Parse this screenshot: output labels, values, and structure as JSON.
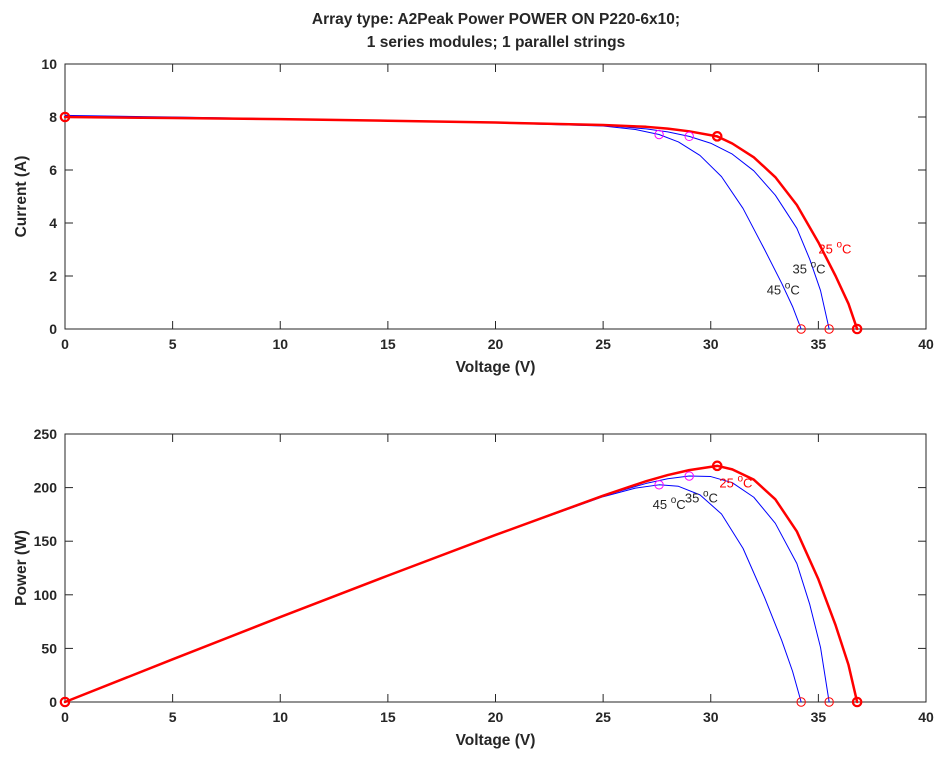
{
  "figure": {
    "title_line1": "Array type: A2Peak Power POWER ON P220-6x10;",
    "title_line2": "1 series modules; 1 parallel strings"
  },
  "colors": {
    "temp25": "#ff0000",
    "temp35": "#0000ff",
    "temp45": "#0000ff",
    "mpp_marker_cool": "#ff00ff",
    "voc_marker": "#ff0000",
    "label25": "#ff0000",
    "label_other": "#262626"
  },
  "chart_data": [
    {
      "type": "line",
      "xlabel": "Voltage (V)",
      "ylabel": "Current (A)",
      "xlim": [
        0,
        40
      ],
      "ylim": [
        0,
        10
      ],
      "xticks": [
        0,
        5,
        10,
        15,
        20,
        25,
        30,
        35,
        40
      ],
      "yticks": [
        0,
        2,
        4,
        6,
        8,
        10
      ],
      "grid": false,
      "series": [
        {
          "name": "25 °C",
          "x": [
            0,
            5,
            10,
            15,
            20,
            25,
            27,
            28,
            29,
            30.3,
            31,
            32,
            33,
            34,
            35,
            35.8,
            36.4,
            36.8
          ],
          "y": [
            8.0,
            7.96,
            7.92,
            7.86,
            7.79,
            7.7,
            7.63,
            7.56,
            7.46,
            7.27,
            7.0,
            6.48,
            5.73,
            4.68,
            3.27,
            2.0,
            0.95,
            0.0
          ]
        },
        {
          "name": "35 °C",
          "x": [
            0,
            5,
            10,
            15,
            20,
            25,
            27,
            28,
            29,
            30,
            31,
            32,
            33,
            34,
            34.6,
            35.1,
            35.5
          ],
          "y": [
            8.03,
            7.98,
            7.92,
            7.85,
            7.78,
            7.69,
            7.55,
            7.44,
            7.27,
            7.01,
            6.6,
            5.97,
            5.05,
            3.8,
            2.63,
            1.45,
            0.0
          ]
        },
        {
          "name": "45 °C",
          "x": [
            0,
            5,
            10,
            15,
            20,
            25,
            26.5,
            27.6,
            28.5,
            29.5,
            30.5,
            31.5,
            32.5,
            33.3,
            33.8,
            34.2
          ],
          "y": [
            8.06,
            8.0,
            7.93,
            7.86,
            7.78,
            7.66,
            7.53,
            7.34,
            7.06,
            6.55,
            5.75,
            4.55,
            3.0,
            1.72,
            0.85,
            0.0
          ]
        }
      ],
      "markers": [
        {
          "x": 0,
          "y": 8.0,
          "kind": "isc"
        },
        {
          "x": 30.3,
          "y": 7.27,
          "kind": "mpp"
        },
        {
          "x": 29.0,
          "y": 7.27,
          "kind": "mpp"
        },
        {
          "x": 27.6,
          "y": 7.34,
          "kind": "mpp"
        },
        {
          "x": 36.8,
          "y": 0,
          "kind": "voc"
        },
        {
          "x": 35.5,
          "y": 0,
          "kind": "voc"
        },
        {
          "x": 34.2,
          "y": 0,
          "kind": "voc"
        }
      ],
      "annotations": [
        {
          "text": "25 ",
          "sup": "o",
          "tail": "C",
          "x": 35.0,
          "y": 2.85,
          "color_key": "label25"
        },
        {
          "text": "35 ",
          "sup": "o",
          "tail": "C",
          "x": 33.8,
          "y": 2.1,
          "color_key": "label_other"
        },
        {
          "text": "45 ",
          "sup": "o",
          "tail": "C",
          "x": 32.6,
          "y": 1.3,
          "color_key": "label_other"
        }
      ]
    },
    {
      "type": "line",
      "xlabel": "Voltage (V)",
      "ylabel": "Power (W)",
      "xlim": [
        0,
        40
      ],
      "ylim": [
        0,
        250
      ],
      "xticks": [
        0,
        5,
        10,
        15,
        20,
        25,
        30,
        35,
        40
      ],
      "yticks": [
        0,
        50,
        100,
        150,
        200,
        250
      ],
      "grid": false,
      "series": [
        {
          "name": "25 °C",
          "x": [
            0,
            5,
            10,
            15,
            20,
            25,
            27,
            28,
            29,
            30.3,
            31,
            32,
            33,
            34,
            35,
            35.8,
            36.4,
            36.8
          ],
          "y": [
            0,
            39.8,
            79.2,
            117.9,
            155.8,
            192.5,
            206.0,
            211.7,
            216.3,
            220.3,
            217.0,
            207.4,
            189.1,
            159.1,
            114.5,
            71.6,
            34.6,
            0
          ]
        },
        {
          "name": "35 °C",
          "x": [
            0,
            5,
            10,
            15,
            20,
            25,
            27,
            28,
            29,
            30,
            31,
            32,
            33,
            34,
            34.6,
            35.1,
            35.5
          ],
          "y": [
            0,
            39.9,
            79.2,
            117.8,
            155.6,
            192.3,
            203.9,
            208.3,
            210.8,
            210.3,
            204.6,
            191.0,
            166.7,
            129.2,
            91.0,
            50.9,
            0
          ]
        },
        {
          "name": "45 °C",
          "x": [
            0,
            5,
            10,
            15,
            20,
            25,
            26.5,
            27.6,
            28.5,
            29.5,
            30.5,
            31.5,
            32.5,
            33.3,
            33.8,
            34.2
          ],
          "y": [
            0,
            40.0,
            79.3,
            117.9,
            155.6,
            191.5,
            199.5,
            202.6,
            201.2,
            193.2,
            175.4,
            143.3,
            97.5,
            57.3,
            28.7,
            0
          ]
        }
      ],
      "markers": [
        {
          "x": 0,
          "y": 0,
          "kind": "isc"
        },
        {
          "x": 30.3,
          "y": 220.3,
          "kind": "mpp"
        },
        {
          "x": 29.0,
          "y": 210.8,
          "kind": "mpp"
        },
        {
          "x": 27.6,
          "y": 202.6,
          "kind": "mpp"
        },
        {
          "x": 36.8,
          "y": 0,
          "kind": "voc"
        },
        {
          "x": 35.5,
          "y": 0,
          "kind": "voc"
        },
        {
          "x": 34.2,
          "y": 0,
          "kind": "voc"
        }
      ],
      "annotations": [
        {
          "text": "25 ",
          "sup": "o",
          "tail": "C",
          "x": 30.4,
          "y": 200,
          "color_key": "label25"
        },
        {
          "text": "35 ",
          "sup": "o",
          "tail": "C",
          "x": 28.8,
          "y": 186,
          "color_key": "label_other"
        },
        {
          "text": "45 ",
          "sup": "o",
          "tail": "C",
          "x": 27.3,
          "y": 180,
          "color_key": "label_other"
        }
      ]
    }
  ]
}
